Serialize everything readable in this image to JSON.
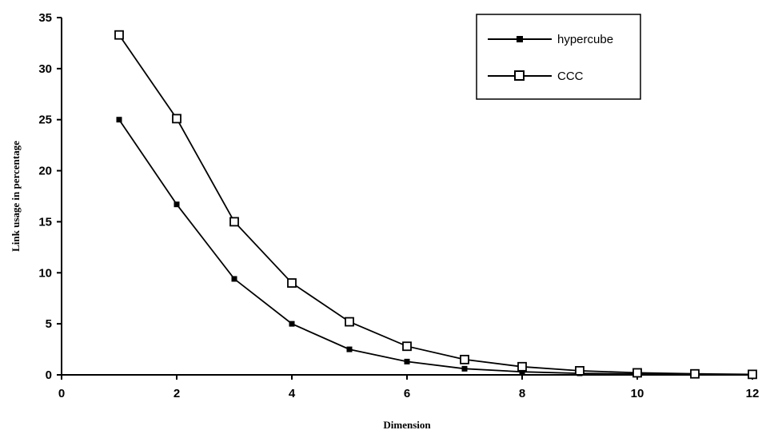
{
  "chart_data": {
    "type": "line",
    "title": "",
    "xlabel": "Dimension",
    "ylabel": "Link usage in percentage",
    "xlim": [
      0,
      12
    ],
    "ylim": [
      0,
      35
    ],
    "xticks": [
      0,
      2,
      4,
      6,
      8,
      10,
      12
    ],
    "yticks": [
      0,
      5,
      10,
      15,
      20,
      25,
      30,
      35
    ],
    "grid": false,
    "legend_position": "top-right",
    "series": [
      {
        "name": "hypercube",
        "marker": "filled-square",
        "color": "#000000",
        "x": [
          1,
          2,
          3,
          4,
          5,
          6,
          7,
          8,
          9,
          10,
          11,
          12
        ],
        "y": [
          25,
          16.7,
          9.4,
          5.0,
          2.5,
          1.3,
          0.6,
          0.3,
          0.15,
          0.08,
          0.04,
          0.02
        ]
      },
      {
        "name": "CCC",
        "marker": "open-square",
        "color": "#000000",
        "x": [
          1,
          2,
          3,
          4,
          5,
          6,
          7,
          8,
          9,
          10,
          11,
          12
        ],
        "y": [
          33.3,
          25.1,
          15.0,
          9.0,
          5.2,
          2.8,
          1.5,
          0.8,
          0.4,
          0.2,
          0.1,
          0.05
        ]
      }
    ]
  }
}
